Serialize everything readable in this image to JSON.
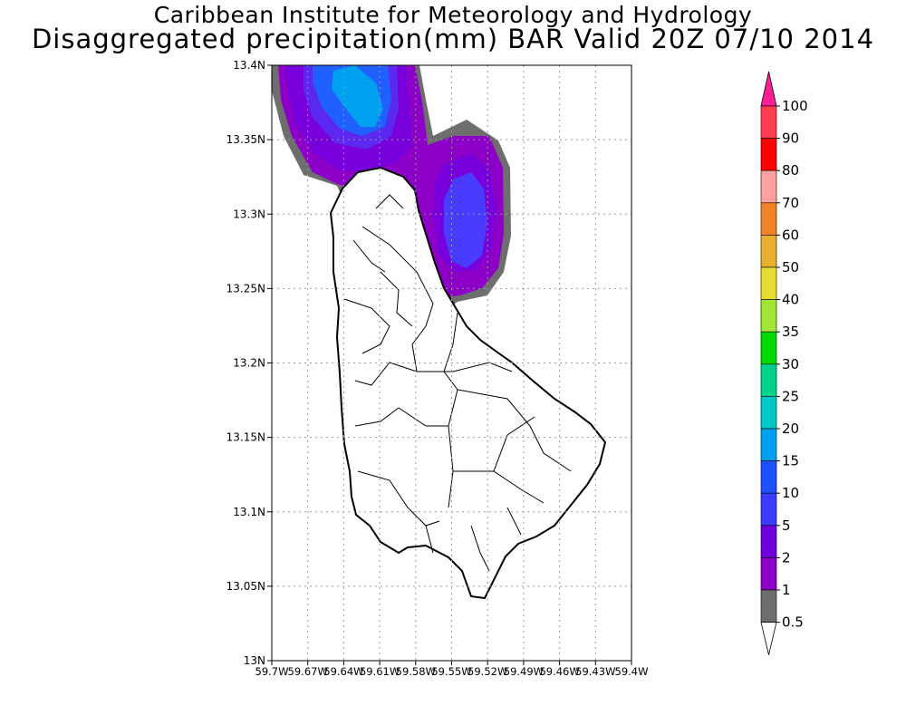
{
  "titles": {
    "institute": "Caribbean Institute for Meteorology and Hydrology",
    "product": "Disaggregated precipitation(mm) BAR Valid 20Z 07/10 2014"
  },
  "map": {
    "lat_ticks": [
      "13N",
      "13.05N",
      "13.1N",
      "13.15N",
      "13.2N",
      "13.25N",
      "13.3N",
      "13.35N",
      "13.4N"
    ],
    "lon_ticks": [
      "59.7W",
      "59.67W",
      "59.64W",
      "59.61W",
      "59.58W",
      "59.55W",
      "59.52W",
      "59.49W",
      "59.46W",
      "59.43W",
      "59.4W"
    ],
    "lat_range": [
      13.0,
      13.4
    ],
    "lon_range": [
      -59.7,
      -59.4
    ],
    "grid": true,
    "grid_style": "dotted"
  },
  "legend": {
    "placement": "right",
    "colors": [
      "#ffffff",
      "#6e6e6e",
      "#8c00c8",
      "#6e00dc",
      "#3c3cff",
      "#1e50ff",
      "#00a0f0",
      "#00c8c8",
      "#00d28c",
      "#00dc00",
      "#a0e632",
      "#e6dc32",
      "#e6af2d",
      "#f08228",
      "#ffa0a0",
      "#ff0000",
      "#ff3c50",
      "#ff1e96"
    ],
    "labels": [
      "0.5",
      "1",
      "2",
      "5",
      "10",
      "15",
      "20",
      "25",
      "30",
      "35",
      "40",
      "50",
      "60",
      "70",
      "80",
      "90",
      "100"
    ]
  }
}
